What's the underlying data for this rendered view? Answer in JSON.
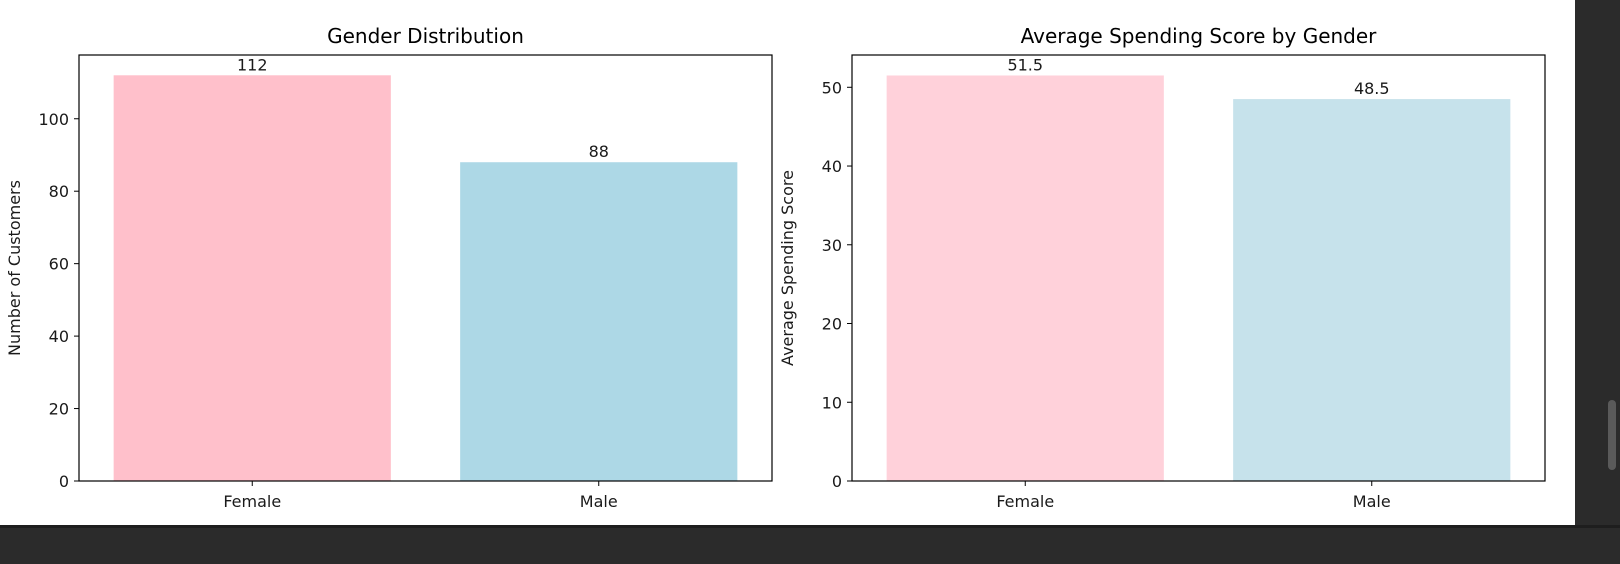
{
  "chart_data": [
    {
      "type": "bar",
      "title": "Gender Distribution",
      "xlabel": "",
      "ylabel": "Number of Customers",
      "categories": [
        "Female",
        "Male"
      ],
      "values": [
        112,
        88
      ],
      "data_labels": [
        "112",
        "88"
      ],
      "colors": [
        "#ffc0cb",
        "#add8e6"
      ],
      "ylim": [
        0,
        117.6
      ],
      "yticks": [
        0,
        20,
        40,
        60,
        80,
        100
      ],
      "grid": false
    },
    {
      "type": "bar",
      "title": "Average Spending Score by Gender",
      "xlabel": "",
      "ylabel": "Average Spending Score",
      "categories": [
        "Female",
        "Male"
      ],
      "values": [
        51.5,
        48.5
      ],
      "data_labels": [
        "51.5",
        "48.5"
      ],
      "colors": [
        "#ffd1da",
        "#c6e2eb"
      ],
      "ylim": [
        0,
        54.1
      ],
      "yticks": [
        0,
        10,
        20,
        30,
        40,
        50
      ],
      "grid": false
    }
  ]
}
